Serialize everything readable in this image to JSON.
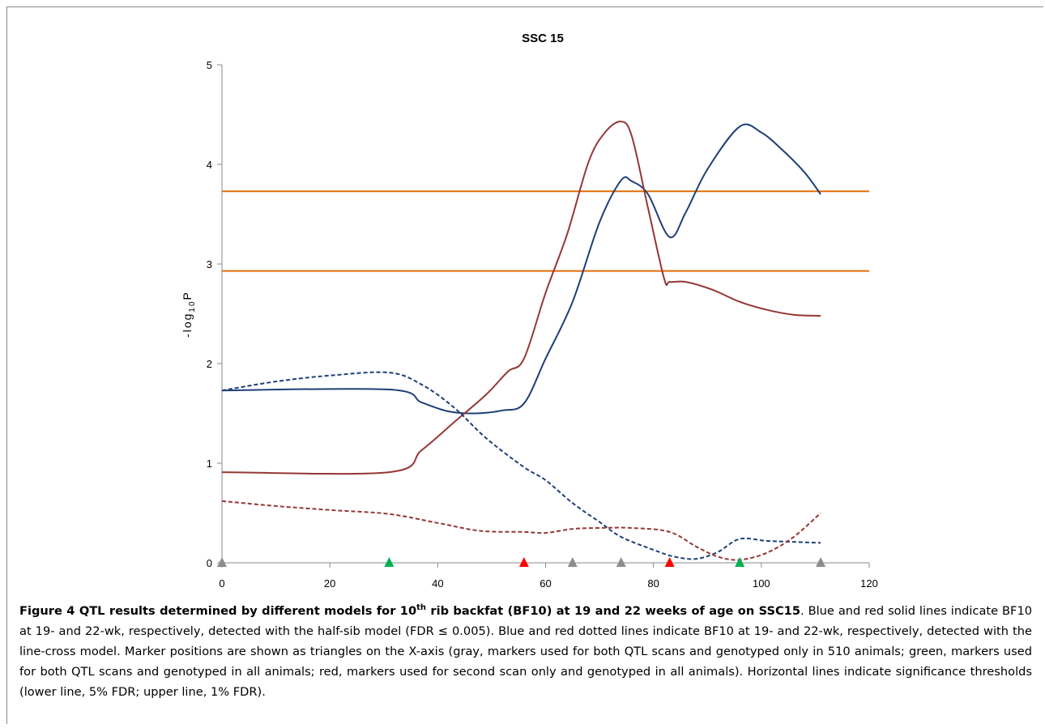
{
  "chart_data": {
    "type": "line",
    "title": "SSC 15",
    "ylabel": "-log10P",
    "ylabel_parts": {
      "prefix": "-log",
      "sub": "10",
      "suffix": "P"
    },
    "xlabel": "",
    "xlim": [
      0,
      120
    ],
    "ylim": [
      0,
      5
    ],
    "xticks": [
      0,
      20,
      40,
      60,
      80,
      100,
      120
    ],
    "yticks": [
      0,
      1,
      2,
      3,
      4,
      5
    ],
    "grid": false,
    "legend": "none",
    "thresholds": [
      {
        "y": 2.93,
        "color": "#e36c0a"
      },
      {
        "y": 3.73,
        "color": "#e36c0a"
      }
    ],
    "series": [
      {
        "color": "#1f3f77",
        "dash": false,
        "x": [
          0,
          31,
          37,
          42,
          47,
          52,
          56,
          60,
          65,
          70,
          74,
          76,
          79,
          83,
          86,
          90,
          96,
          100,
          104,
          108,
          111
        ],
        "y": [
          1.73,
          1.74,
          1.61,
          1.52,
          1.5,
          1.53,
          1.6,
          2.05,
          2.62,
          3.42,
          3.84,
          3.83,
          3.7,
          3.27,
          3.52,
          3.95,
          4.38,
          4.32,
          4.14,
          3.92,
          3.7
        ]
      },
      {
        "color": "#953734",
        "dash": false,
        "x": [
          0,
          31,
          37,
          43,
          49,
          53,
          56,
          60,
          64,
          68,
          71,
          74,
          76,
          79,
          82,
          83,
          86,
          91,
          96,
          101,
          106,
          111
        ],
        "y": [
          0.91,
          0.91,
          1.13,
          1.41,
          1.69,
          1.92,
          2.05,
          2.71,
          3.3,
          4.03,
          4.32,
          4.43,
          4.28,
          3.56,
          2.85,
          2.82,
          2.82,
          2.74,
          2.62,
          2.54,
          2.49,
          2.48
        ]
      },
      {
        "color": "#1f3f77",
        "dash": true,
        "x": [
          0,
          10,
          20,
          31,
          37,
          43,
          49,
          56,
          60,
          65,
          70,
          74,
          80,
          84,
          88,
          92,
          96,
          101,
          106,
          111
        ],
        "y": [
          1.73,
          1.82,
          1.88,
          1.91,
          1.79,
          1.56,
          1.25,
          0.96,
          0.83,
          0.6,
          0.41,
          0.26,
          0.13,
          0.06,
          0.04,
          0.11,
          0.24,
          0.22,
          0.21,
          0.2
        ]
      },
      {
        "color": "#953734",
        "dash": true,
        "x": [
          0,
          10,
          20,
          31,
          40,
          48,
          56,
          60,
          65,
          70,
          76,
          83,
          88,
          92,
          96,
          101,
          106,
          111
        ],
        "y": [
          0.62,
          0.57,
          0.53,
          0.49,
          0.4,
          0.32,
          0.31,
          0.3,
          0.34,
          0.35,
          0.35,
          0.31,
          0.16,
          0.06,
          0.03,
          0.1,
          0.26,
          0.5
        ]
      }
    ],
    "markers": [
      {
        "x": 0,
        "color": "#8c8c8c"
      },
      {
        "x": 31,
        "color": "#00b050"
      },
      {
        "x": 56,
        "color": "#ff0000"
      },
      {
        "x": 65,
        "color": "#8c8c8c"
      },
      {
        "x": 74,
        "color": "#8c8c8c"
      },
      {
        "x": 83,
        "color": "#ff0000"
      },
      {
        "x": 96,
        "color": "#00b050"
      },
      {
        "x": 111,
        "color": "#8c8c8c"
      }
    ]
  },
  "caption": {
    "lead_prefix": "Figure 4 QTL results determined by different models for 10",
    "lead_sup": "th",
    "lead_suffix": " rib backfat (BF10) at 19 and 22 weeks of age on SSC15",
    "body": ". Blue and red solid lines indicate BF10 at 19- and 22-wk, respectively, detected with the half-sib model (FDR ≤ 0.005). Blue and red dotted lines indicate BF10 at 19- and 22-wk, respectively, detected with the line-cross model. Marker positions are shown as triangles on the X-axis (gray, markers used for both QTL scans and genotyped only in 510 animals; green, markers used for both QTL scans and genotyped in all animals; red, markers used for second scan only and genotyped in all animals). Horizontal lines indicate significance thresholds (lower line, 5% FDR; upper line, 1% FDR)."
  }
}
